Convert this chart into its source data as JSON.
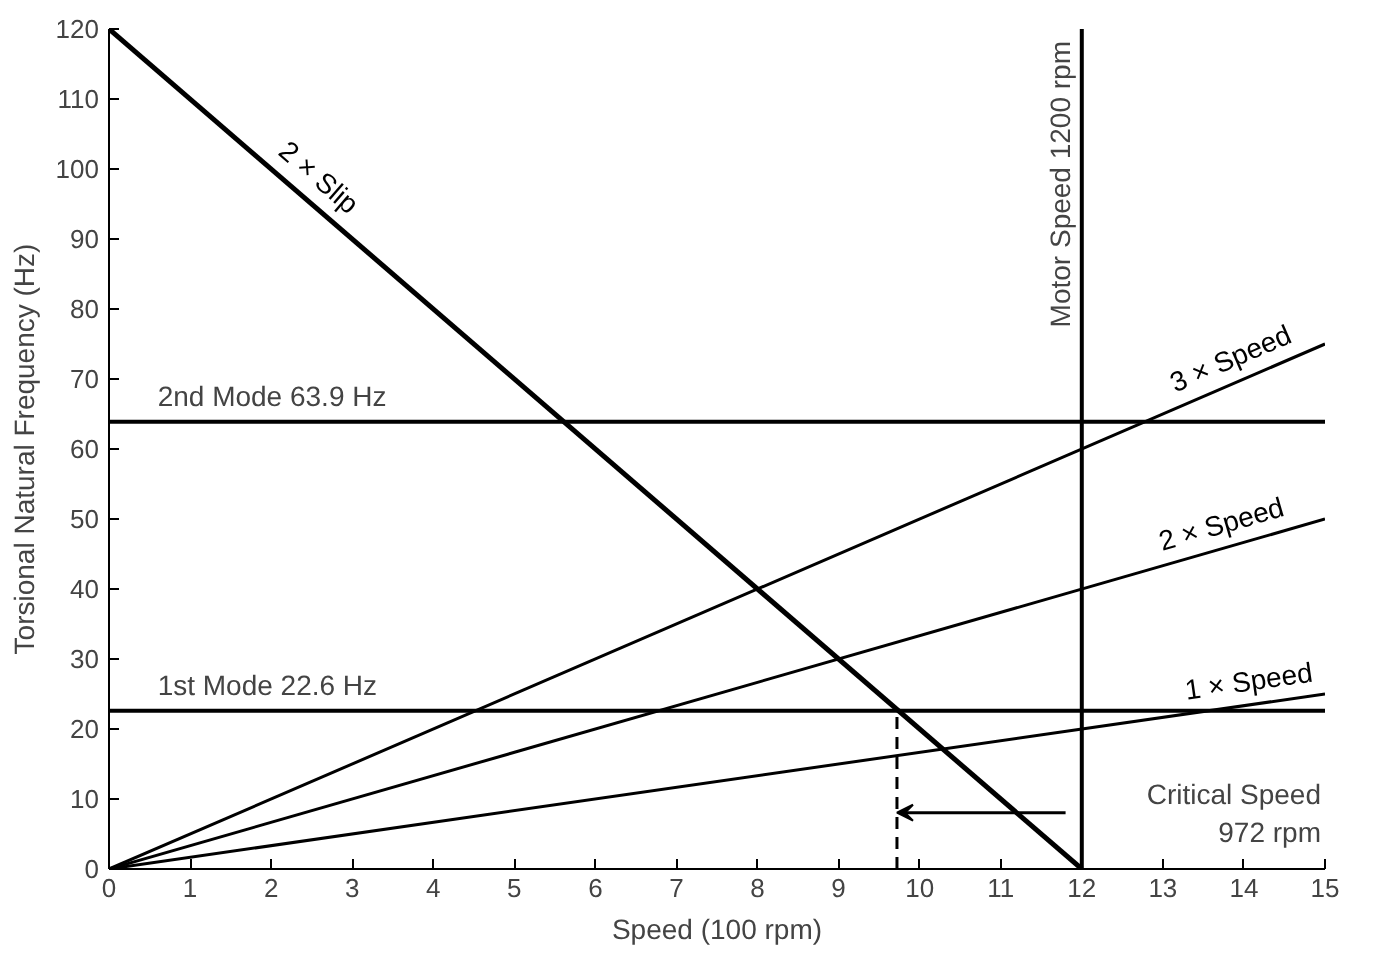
{
  "chart_data": {
    "type": "line",
    "xlabel": "Speed (100 rpm)",
    "ylabel": "Torsional Natural Frequency (Hz)",
    "xlim": [
      0,
      15
    ],
    "ylim": [
      0,
      120
    ],
    "xticks": [
      0,
      1,
      2,
      3,
      4,
      5,
      6,
      7,
      8,
      9,
      10,
      11,
      12,
      13,
      14,
      15
    ],
    "yticks": [
      0,
      10,
      20,
      30,
      40,
      50,
      60,
      70,
      80,
      90,
      100,
      110,
      120
    ],
    "grid": false,
    "marker": "none",
    "line_style": "solid",
    "series": [
      {
        "name": "2 × Slip",
        "color": "#000000",
        "x": [
          0,
          12
        ],
        "values": [
          120,
          0
        ]
      },
      {
        "name": "3 × Speed",
        "color": "#000000",
        "x": [
          0,
          15
        ],
        "values": [
          0,
          75
        ]
      },
      {
        "name": "2 × Speed",
        "color": "#000000",
        "x": [
          0,
          15
        ],
        "values": [
          0,
          50
        ]
      },
      {
        "name": "1 × Speed",
        "color": "#000000",
        "x": [
          0,
          15
        ],
        "values": [
          0,
          25
        ]
      },
      {
        "color": "#000000",
        "x": [
          9.72,
          9.72
        ],
        "values": [
          0,
          22.6
        ],
        "line_style": "dashed"
      }
    ],
    "ref_lines": [
      {
        "axis": "y",
        "value": 63.9,
        "label": "2nd Mode 63.9 Hz",
        "color": "#000000"
      },
      {
        "axis": "y",
        "value": 22.6,
        "label": "1st Mode 22.6 Hz",
        "color": "#000000"
      },
      {
        "axis": "x",
        "value": 12,
        "label": "Motor Speed 1200 rpm",
        "color": "#000000"
      }
    ],
    "annotations": [
      "Critical Speed\n972 rpm"
    ]
  }
}
